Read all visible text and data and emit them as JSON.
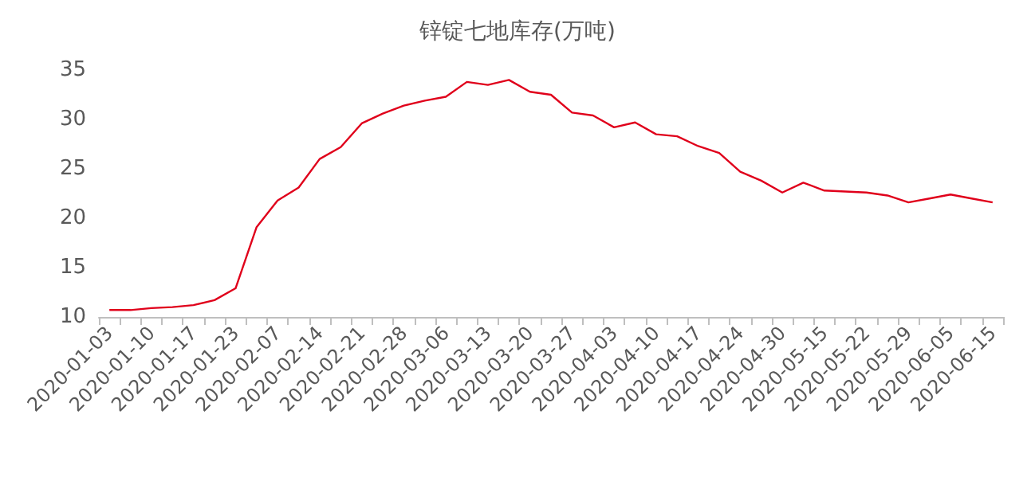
{
  "chart_data": {
    "type": "line",
    "title": "锌锭七地库存(万吨)",
    "categories": [
      "2020-01-03",
      null,
      "2020-01-10",
      null,
      "2020-01-17",
      null,
      "2020-01-23",
      null,
      "2020-02-07",
      null,
      "2020-02-14",
      null,
      "2020-02-21",
      null,
      "2020-02-28",
      null,
      "2020-03-06",
      null,
      "2020-03-13",
      null,
      "2020-03-20",
      null,
      "2020-03-27",
      null,
      "2020-04-03",
      null,
      "2020-04-10",
      null,
      "2020-04-17",
      null,
      "2020-04-24",
      null,
      "2020-04-30",
      null,
      "2020-05-15",
      null,
      "2020-05-22",
      null,
      "2020-05-29",
      null,
      "2020-06-05",
      null,
      "2020-06-15"
    ],
    "series": [
      {
        "color": "#e0001b",
        "values": [
          10.7,
          10.7,
          10.9,
          11.0,
          11.2,
          11.7,
          12.9,
          19.1,
          21.8,
          23.1,
          26.0,
          27.2,
          29.6,
          30.6,
          31.4,
          31.9,
          32.3,
          33.8,
          33.5,
          34.0,
          32.8,
          32.5,
          30.7,
          30.4,
          29.2,
          29.7,
          28.5,
          28.3,
          27.3,
          26.6,
          24.7,
          23.8,
          22.6,
          23.6,
          22.8,
          22.7,
          22.6,
          22.3,
          21.6,
          22.0,
          22.4,
          22.0,
          21.6
        ]
      }
    ],
    "ylim": [
      10,
      35
    ],
    "yticks": [
      10,
      15,
      20,
      25,
      30,
      35
    ],
    "grid": false,
    "marker": "none",
    "line_style": "solid"
  }
}
